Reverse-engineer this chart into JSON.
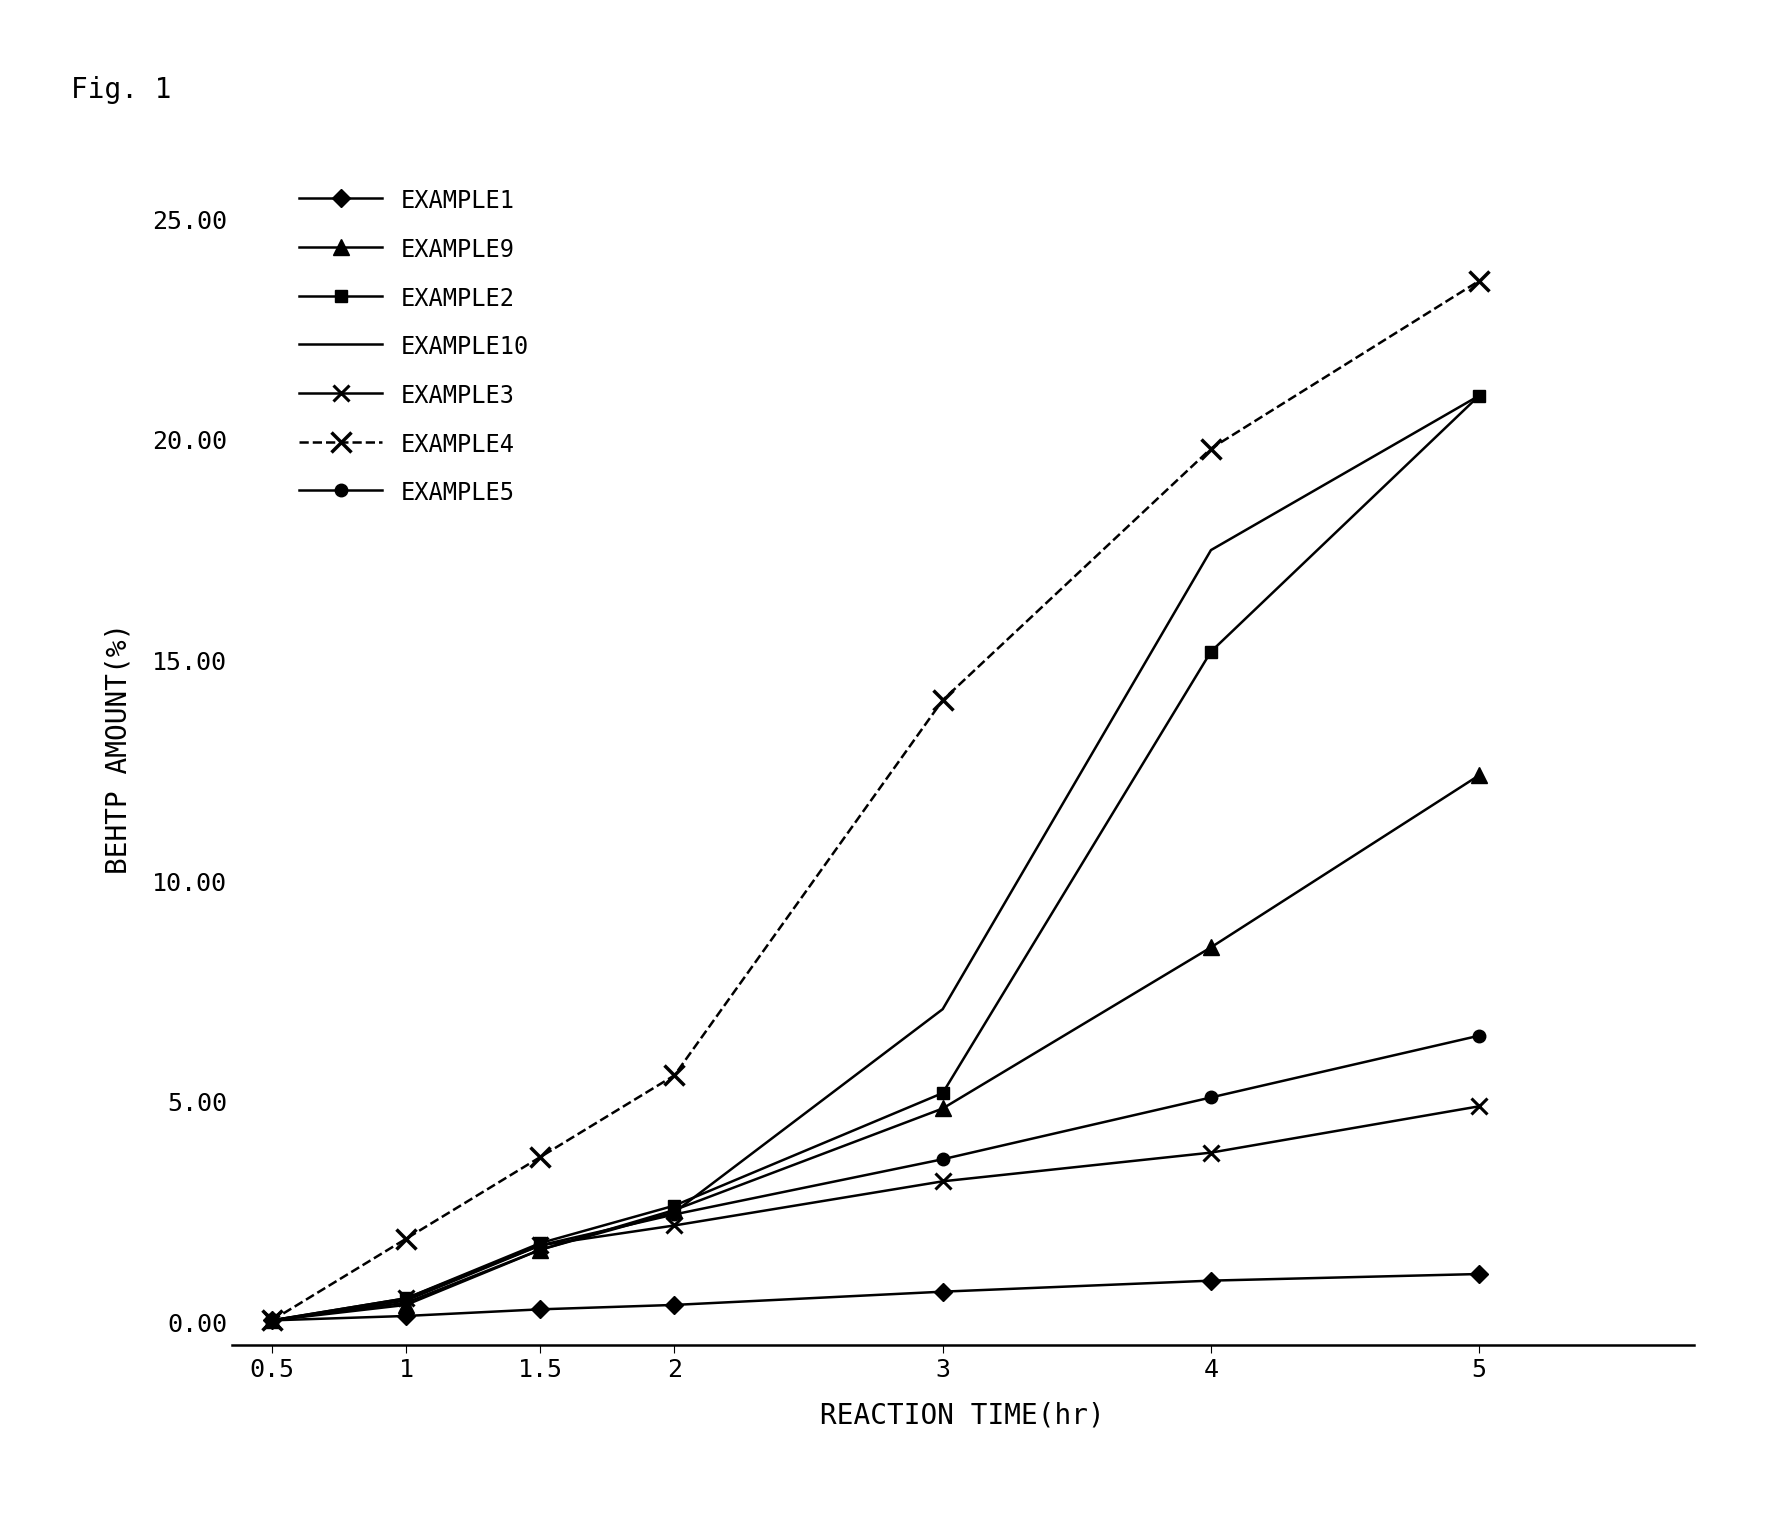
{
  "fig_label": "Fig. 1",
  "xlabel": "REACTION TIME(hr)",
  "ylabel": "BEHTP AMOUNT(%)",
  "xlim": [
    0.35,
    5.8
  ],
  "ylim": [
    -0.5,
    26.5
  ],
  "xticks": [
    0.5,
    1,
    1.5,
    2,
    3,
    4,
    5
  ],
  "xticklabels": [
    "0.5",
    "1",
    "1.5",
    "2",
    "3",
    "4",
    "5"
  ],
  "yticks": [
    0.0,
    5.0,
    10.0,
    15.0,
    20.0,
    25.0
  ],
  "x": [
    0.5,
    1,
    1.5,
    2,
    3,
    4,
    5
  ],
  "series": [
    {
      "label": "EXAMPLE1",
      "color": "#000000",
      "linestyle": "-",
      "marker": "D",
      "markersize": 9,
      "markerfacecolor": "#000000",
      "linewidth": 1.8,
      "y": [
        0.05,
        0.15,
        0.3,
        0.4,
        0.7,
        0.95,
        1.1
      ]
    },
    {
      "label": "EXAMPLE9",
      "color": "#000000",
      "linestyle": "-",
      "marker": "^",
      "markersize": 11,
      "markerfacecolor": "#000000",
      "linewidth": 1.8,
      "y": [
        0.05,
        0.4,
        1.65,
        2.55,
        4.85,
        8.5,
        12.4
      ]
    },
    {
      "label": "EXAMPLE2",
      "color": "#000000",
      "linestyle": "-",
      "marker": "s",
      "markersize": 9,
      "markerfacecolor": "#000000",
      "linewidth": 1.8,
      "y": [
        0.05,
        0.55,
        1.8,
        2.65,
        5.2,
        15.2,
        21.0
      ]
    },
    {
      "label": "EXAMPLE10",
      "color": "#000000",
      "linestyle": "-",
      "marker": null,
      "markersize": 0,
      "markerfacecolor": "#000000",
      "linewidth": 1.8,
      "y": [
        0.05,
        0.45,
        1.65,
        2.5,
        7.1,
        17.5,
        21.0
      ]
    },
    {
      "label": "EXAMPLE3",
      "color": "#000000",
      "linestyle": "-",
      "marker": "x",
      "markersize": 11,
      "markerfacecolor": "#000000",
      "linewidth": 1.8,
      "markeredgewidth": 2.2,
      "y": [
        0.05,
        0.55,
        1.75,
        2.2,
        3.2,
        3.85,
        4.9
      ]
    },
    {
      "label": "EXAMPLE4",
      "color": "#000000",
      "linestyle": "--",
      "marker": "x",
      "markersize": 14,
      "markerfacecolor": "#000000",
      "linewidth": 1.8,
      "markeredgewidth": 2.5,
      "y": [
        0.05,
        1.9,
        3.75,
        5.6,
        14.1,
        19.8,
        23.6
      ]
    },
    {
      "label": "EXAMPLE5",
      "color": "#000000",
      "linestyle": "-",
      "marker": "o",
      "markersize": 9,
      "markerfacecolor": "#000000",
      "linewidth": 1.8,
      "y": [
        0.05,
        0.5,
        1.75,
        2.45,
        3.7,
        5.1,
        6.5
      ]
    }
  ],
  "legend_fontsize": 17,
  "axis_fontsize": 20,
  "tick_fontsize": 18,
  "fig_label_fontsize": 20,
  "background_color": "#ffffff",
  "font_family": "monospace"
}
